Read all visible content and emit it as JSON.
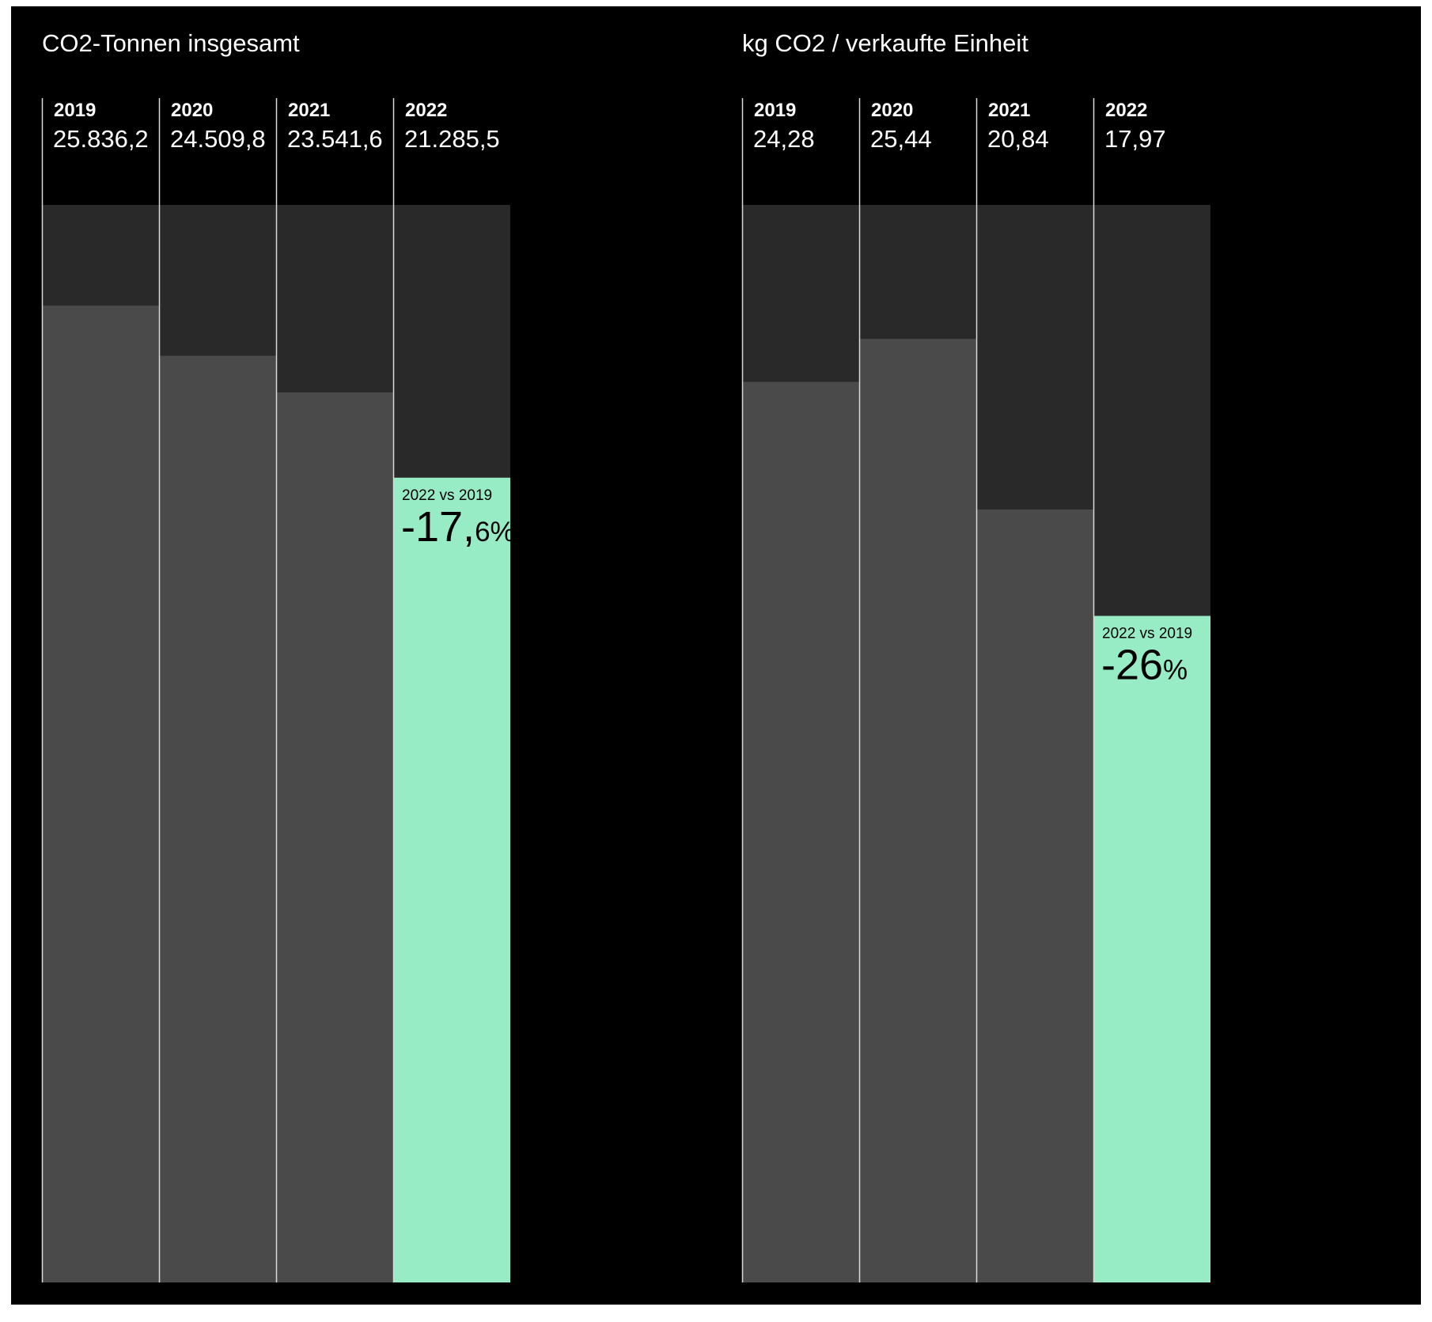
{
  "colors": {
    "background": "#000000",
    "track": "#292929",
    "bar": "#4a4a4a",
    "highlight": "#98ecc5",
    "text": "#ffffff",
    "highlight_text": "#000000"
  },
  "chart_data": [
    {
      "type": "bar",
      "title": "CO2-Tonnen insgesamt",
      "categories": [
        "2019",
        "2020",
        "2021",
        "2022"
      ],
      "value_labels": [
        "25.836,2",
        "24.509,8",
        "23.541,6",
        "21.285,5"
      ],
      "values": [
        25836.2,
        24509.8,
        23541.6,
        21285.5
      ],
      "ylim": [
        0,
        28500
      ],
      "highlight_index": 3,
      "comparison": {
        "label": "2022 vs 2019",
        "value_main": "-17,",
        "value_small": "6%"
      }
    },
    {
      "type": "bar",
      "title": "kg CO2 / verkaufte Einheit",
      "categories": [
        "2019",
        "2020",
        "2021",
        "2022"
      ],
      "value_labels": [
        "24,28",
        "25,44",
        "20,84",
        "17,97"
      ],
      "values": [
        24.28,
        25.44,
        20.84,
        17.97
      ],
      "ylim": [
        0,
        29.05
      ],
      "highlight_index": 3,
      "comparison": {
        "label": "2022 vs 2019",
        "value_main": "-26",
        "value_small": "%"
      }
    }
  ]
}
